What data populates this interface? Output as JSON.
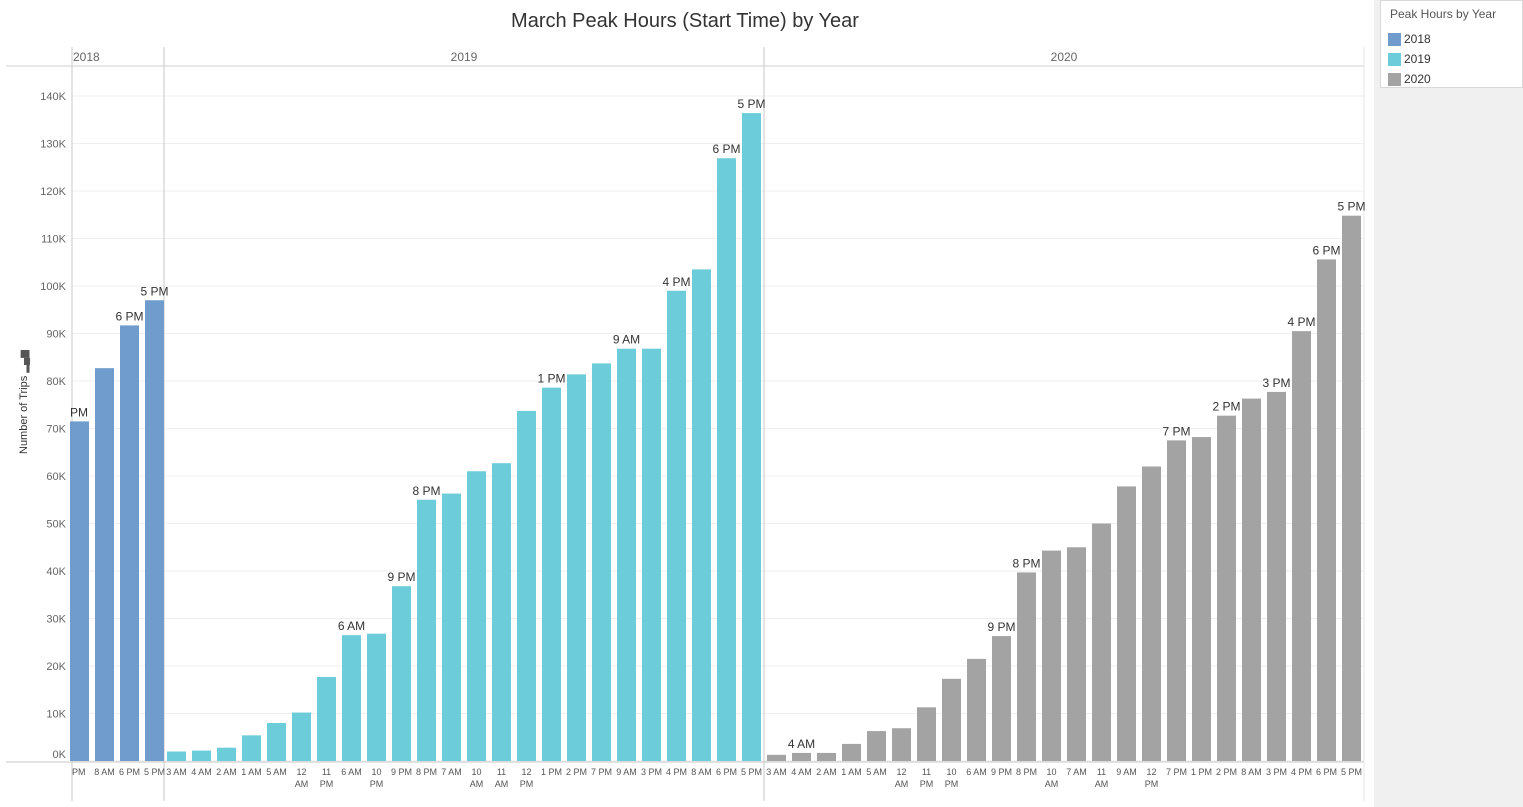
{
  "chart_data": {
    "type": "bar",
    "title": "March Peak Hours (Start Time) by Year",
    "ylabel": "Number of Trips",
    "ylim": [
      0,
      147000
    ],
    "yticks": [
      "0K",
      "10K",
      "20K",
      "30K",
      "40K",
      "50K",
      "60K",
      "70K",
      "80K",
      "90K",
      "100K",
      "110K",
      "120K",
      "130K",
      "140K"
    ],
    "ytick_values": [
      0,
      10000,
      20000,
      30000,
      40000,
      50000,
      60000,
      70000,
      80000,
      90000,
      100000,
      110000,
      120000,
      130000,
      140000
    ],
    "grid": true,
    "legend": {
      "title": "Peak Hours by Year",
      "position": "top-right",
      "items": [
        {
          "label": "2018",
          "color": "#6f9ccc"
        },
        {
          "label": "2019",
          "color": "#6dccd9"
        },
        {
          "label": "2020",
          "color": "#a3a3a3"
        }
      ]
    },
    "panels": [
      {
        "name": "2018",
        "color": "#6f9ccc",
        "categories": [
          "PM",
          "8 AM",
          "6 PM",
          "5 PM"
        ],
        "values": [
          71500,
          82700,
          91700,
          97000
        ],
        "labels": [
          "PM",
          "",
          "6 PM",
          "5 PM"
        ]
      },
      {
        "name": "2019",
        "color": "#6dccd9",
        "categories": [
          "3 AM",
          "4 AM",
          "2 AM",
          "1 AM",
          "5 AM",
          "12 AM",
          "11 PM",
          "6 AM",
          "10 PM",
          "9 PM",
          "8 PM",
          "7 AM",
          "10 AM",
          "11 AM",
          "12 PM",
          "1 PM",
          "2 PM",
          "7 PM",
          "9 AM",
          "3 PM",
          "4 PM",
          "8 AM",
          "6 PM",
          "5 PM"
        ],
        "values": [
          2000,
          2200,
          2800,
          5400,
          8000,
          10200,
          17700,
          26500,
          26800,
          36800,
          55000,
          56300,
          61000,
          62700,
          73700,
          78600,
          81400,
          83700,
          86800,
          86800,
          99000,
          103500,
          126900,
          136400
        ],
        "labels": [
          "",
          "",
          "",
          "",
          "",
          "",
          "",
          "6 AM",
          "",
          "9 PM",
          "8 PM",
          "",
          "",
          "",
          "",
          "1 PM",
          "",
          "",
          "9 AM",
          "",
          "4 PM",
          "",
          "6 PM",
          "5 PM"
        ]
      },
      {
        "name": "2020",
        "color": "#a3a3a3",
        "categories": [
          "3 AM",
          "4 AM",
          "2 AM",
          "1 AM",
          "5 AM",
          "12 AM",
          "11 PM",
          "10 PM",
          "6 AM",
          "9 PM",
          "8 PM",
          "10 AM",
          "7 AM",
          "11 AM",
          "9 AM",
          "12 PM",
          "7 PM",
          "1 PM",
          "2 PM",
          "8 AM",
          "3 PM",
          "4 PM",
          "6 PM",
          "5 PM"
        ],
        "values": [
          1300,
          1700,
          1700,
          3600,
          6300,
          6900,
          11300,
          17300,
          21500,
          26300,
          39700,
          44300,
          45000,
          50000,
          57800,
          62000,
          67500,
          68200,
          72700,
          76300,
          77700,
          90500,
          105600,
          114800
        ],
        "labels": [
          "",
          "4 AM",
          "",
          "",
          "",
          "",
          "",
          "",
          "",
          "9 PM",
          "8 PM",
          "",
          "",
          "",
          "",
          "",
          "7 PM",
          "",
          "2 PM",
          "",
          "3 PM",
          "4 PM",
          "6 PM",
          "5 PM"
        ]
      }
    ]
  }
}
